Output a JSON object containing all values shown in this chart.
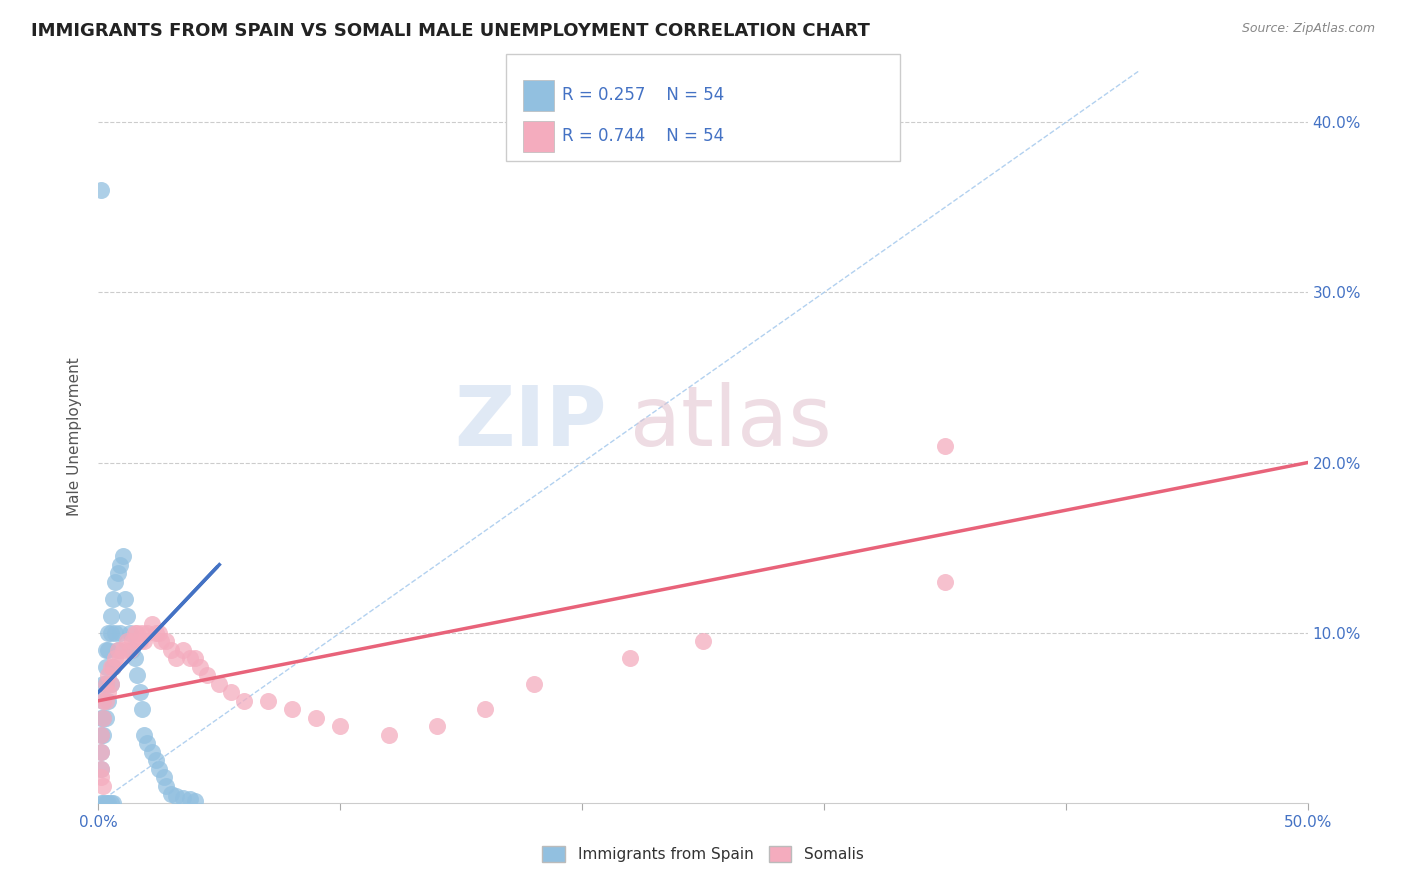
{
  "title": "IMMIGRANTS FROM SPAIN VS SOMALI MALE UNEMPLOYMENT CORRELATION CHART",
  "source": "Source: ZipAtlas.com",
  "ylabel": "Male Unemployment",
  "xlim": [
    0.0,
    0.5
  ],
  "ylim": [
    0.0,
    0.43
  ],
  "r_spain": 0.257,
  "r_somali": 0.744,
  "n": 54,
  "legend_label_spain": "Immigrants from Spain",
  "legend_label_somali": "Somalis",
  "color_spain": "#92C0E0",
  "color_somali": "#F4ACBE",
  "trendline_color_spain": "#4472C4",
  "trendline_color_somali": "#E8637A",
  "diagonal_color": "#AACCEE",
  "spain_x": [
    0.001,
    0.001,
    0.001,
    0.001,
    0.001,
    0.002,
    0.002,
    0.002,
    0.002,
    0.003,
    0.003,
    0.003,
    0.003,
    0.004,
    0.004,
    0.004,
    0.005,
    0.005,
    0.005,
    0.006,
    0.006,
    0.007,
    0.007,
    0.008,
    0.008,
    0.009,
    0.009,
    0.01,
    0.011,
    0.012,
    0.013,
    0.014,
    0.015,
    0.016,
    0.017,
    0.018,
    0.019,
    0.02,
    0.022,
    0.024,
    0.025,
    0.027,
    0.028,
    0.03,
    0.032,
    0.035,
    0.038,
    0.04,
    0.001,
    0.002,
    0.003,
    0.004,
    0.005,
    0.006
  ],
  "spain_y": [
    0.36,
    0.05,
    0.04,
    0.03,
    0.02,
    0.07,
    0.06,
    0.05,
    0.04,
    0.09,
    0.08,
    0.07,
    0.05,
    0.1,
    0.09,
    0.06,
    0.11,
    0.1,
    0.07,
    0.12,
    0.08,
    0.13,
    0.1,
    0.135,
    0.09,
    0.14,
    0.1,
    0.145,
    0.12,
    0.11,
    0.1,
    0.09,
    0.085,
    0.075,
    0.065,
    0.055,
    0.04,
    0.035,
    0.03,
    0.025,
    0.02,
    0.015,
    0.01,
    0.005,
    0.004,
    0.003,
    0.002,
    0.001,
    0.0,
    0.0,
    0.0,
    0.0,
    0.0,
    0.0
  ],
  "somali_x": [
    0.001,
    0.001,
    0.001,
    0.002,
    0.002,
    0.003,
    0.003,
    0.004,
    0.004,
    0.005,
    0.005,
    0.006,
    0.007,
    0.008,
    0.009,
    0.01,
    0.012,
    0.013,
    0.014,
    0.015,
    0.016,
    0.017,
    0.018,
    0.019,
    0.02,
    0.022,
    0.024,
    0.025,
    0.026,
    0.028,
    0.03,
    0.032,
    0.035,
    0.038,
    0.04,
    0.042,
    0.045,
    0.05,
    0.055,
    0.06,
    0.07,
    0.08,
    0.09,
    0.1,
    0.12,
    0.14,
    0.16,
    0.18,
    0.22,
    0.25,
    0.35,
    0.35,
    0.001,
    0.002
  ],
  "somali_y": [
    0.04,
    0.03,
    0.02,
    0.06,
    0.05,
    0.07,
    0.06,
    0.075,
    0.065,
    0.08,
    0.07,
    0.08,
    0.085,
    0.09,
    0.085,
    0.09,
    0.095,
    0.09,
    0.095,
    0.1,
    0.1,
    0.095,
    0.1,
    0.095,
    0.1,
    0.105,
    0.1,
    0.1,
    0.095,
    0.095,
    0.09,
    0.085,
    0.09,
    0.085,
    0.085,
    0.08,
    0.075,
    0.07,
    0.065,
    0.06,
    0.06,
    0.055,
    0.05,
    0.045,
    0.04,
    0.045,
    0.055,
    0.07,
    0.085,
    0.095,
    0.21,
    0.13,
    0.015,
    0.01
  ],
  "spain_trend_x0": 0.0,
  "spain_trend_y0": 0.065,
  "spain_trend_x1": 0.05,
  "spain_trend_y1": 0.14,
  "somali_trend_x0": 0.0,
  "somali_trend_y0": 0.06,
  "somali_trend_x1": 0.5,
  "somali_trend_y1": 0.2
}
